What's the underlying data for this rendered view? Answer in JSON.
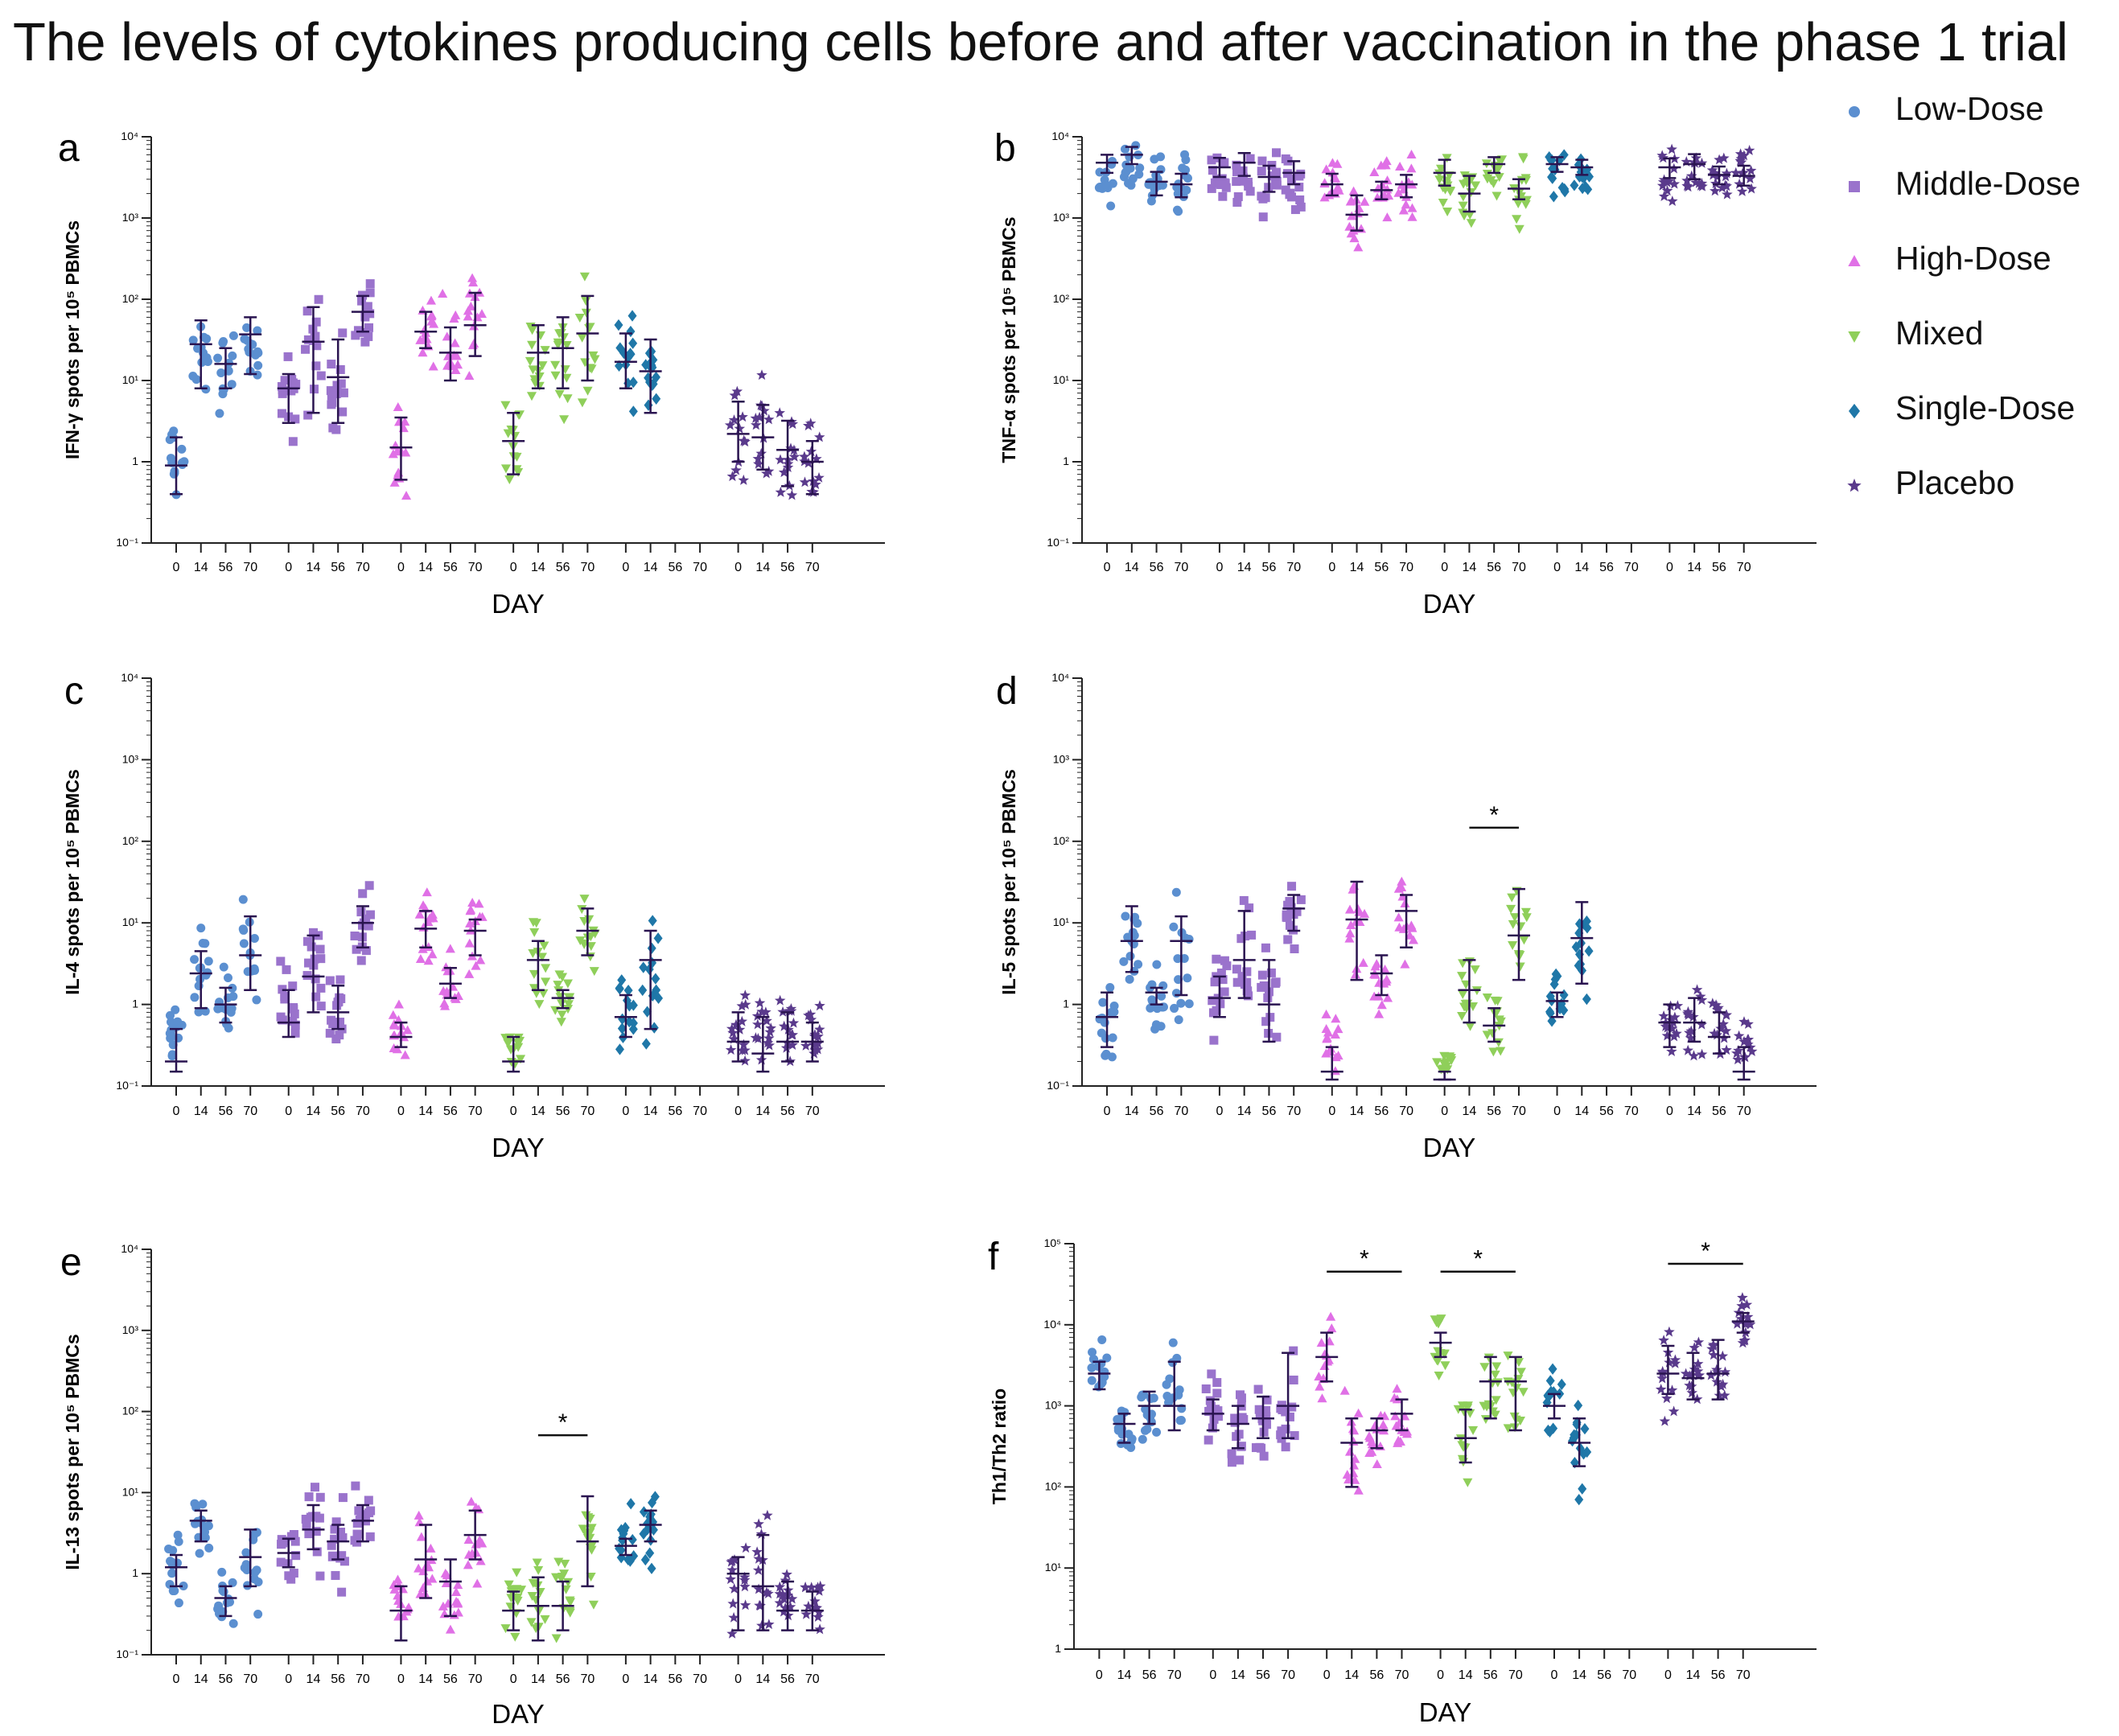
{
  "figure": {
    "title": "The levels of cytokines producing cells before and after vaccination in the phase 1 trial"
  },
  "legend": [
    {
      "name": "Low-Dose",
      "color": "#5b8fd0",
      "marker": "circle"
    },
    {
      "name": "Middle-Dose",
      "color": "#9a73cc",
      "marker": "square"
    },
    {
      "name": "High-Dose",
      "color": "#e070e6",
      "marker": "triangle-up"
    },
    {
      "name": "Mixed",
      "color": "#8fcf5a",
      "marker": "triangle-down"
    },
    {
      "name": "Single-Dose",
      "color": "#1f77a8",
      "marker": "diamond"
    },
    {
      "name": "Placebo",
      "color": "#5a3a8c",
      "marker": "star"
    }
  ],
  "chart_data": [
    {
      "panel": "a",
      "type": "scatter",
      "scale": "log",
      "ylabel": "IFN-γ spots per 10⁵ PBMCs",
      "xlabel": "DAY",
      "ylim_exp": [
        -1,
        4
      ],
      "ytick_labels": [
        "10⁻¹",
        "1",
        "10¹",
        "10²",
        "10³",
        "10⁴"
      ],
      "x_labels": [
        "0",
        "14",
        "56",
        "70"
      ],
      "median": [
        [
          0.9,
          28,
          16,
          37
        ],
        [
          8,
          30,
          11,
          70
        ],
        [
          1.5,
          40,
          22,
          48
        ],
        [
          1.8,
          22,
          25,
          38
        ],
        [
          17,
          13,
          null,
          null
        ],
        [
          2.2,
          2.0,
          1.4,
          1.0
        ]
      ],
      "q1": [
        [
          0.4,
          8,
          8,
          12
        ],
        [
          3,
          4,
          3,
          40
        ],
        [
          0.6,
          25,
          10,
          20
        ],
        [
          0.7,
          8,
          8,
          10
        ],
        [
          8,
          4,
          null,
          null
        ],
        [
          1.0,
          0.8,
          0.5,
          0.4
        ]
      ],
      "q3": [
        [
          2,
          55,
          25,
          60
        ],
        [
          12,
          80,
          32,
          110
        ],
        [
          3.5,
          70,
          45,
          120
        ],
        [
          4,
          48,
          60,
          110
        ],
        [
          38,
          32,
          null,
          null
        ],
        [
          5.5,
          5,
          3.2,
          1.8
        ]
      ],
      "significance": []
    },
    {
      "panel": "b",
      "type": "scatter",
      "scale": "log",
      "ylabel": "TNF-α spots per 10⁵ PBMCs",
      "xlabel": "DAY",
      "ylim_exp": [
        -1,
        4
      ],
      "ytick_labels": [
        "10⁻¹",
        "1",
        "10¹",
        "10²",
        "10³",
        "10⁴"
      ],
      "x_labels": [
        "0",
        "14",
        "56",
        "70"
      ],
      "median": [
        [
          4800,
          6000,
          2800,
          2600
        ],
        [
          4200,
          4800,
          3200,
          3600
        ],
        [
          2600,
          1100,
          2200,
          2600
        ],
        [
          3600,
          2000,
          4600,
          2300
        ],
        [
          4600,
          4200,
          null,
          null
        ],
        [
          4200,
          4600,
          3400,
          3300
        ]
      ],
      "q1": [
        [
          3600,
          4600,
          1900,
          1800
        ],
        [
          3200,
          3300,
          2100,
          2600
        ],
        [
          1900,
          700,
          1700,
          1800
        ],
        [
          2500,
          1200,
          3600,
          1700
        ],
        [
          3700,
          3400,
          null,
          null
        ],
        [
          3100,
          3000,
          2600,
          2500
        ]
      ],
      "q3": [
        [
          6000,
          7500,
          3700,
          3500
        ],
        [
          5500,
          6300,
          4400,
          5000
        ],
        [
          3500,
          1900,
          2800,
          3400
        ],
        [
          5200,
          3300,
          5600,
          3000
        ],
        [
          5600,
          5200,
          null,
          null
        ],
        [
          5400,
          6100,
          4300,
          4400
        ]
      ],
      "significance": []
    },
    {
      "panel": "c",
      "type": "scatter",
      "scale": "log",
      "ylabel": "IL-4 spots per 10⁵ PBMCs",
      "xlabel": "DAY",
      "ylim_exp": [
        -1,
        4
      ],
      "ytick_labels": [
        "10⁻¹",
        "1",
        "10¹",
        "10²",
        "10³",
        "10⁴"
      ],
      "x_labels": [
        "0",
        "14",
        "56",
        "70"
      ],
      "median": [
        [
          0.2,
          2.4,
          1.0,
          4.0
        ],
        [
          0.6,
          2.2,
          0.8,
          10
        ],
        [
          0.4,
          8.5,
          1.8,
          8.0
        ],
        [
          0.2,
          3.5,
          1.2,
          8.0
        ],
        [
          0.7,
          3.5,
          null,
          null
        ],
        [
          0.35,
          0.25,
          0.35,
          0.35
        ]
      ],
      "q1": [
        [
          0.15,
          0.9,
          0.6,
          1.5
        ],
        [
          0.4,
          0.8,
          0.5,
          5
        ],
        [
          0.3,
          5.0,
          1.2,
          4.0
        ],
        [
          0.15,
          1.5,
          0.9,
          4.0
        ],
        [
          0.4,
          0.5,
          null,
          null
        ],
        [
          0.2,
          0.15,
          0.2,
          0.2
        ]
      ],
      "q3": [
        [
          0.5,
          4.5,
          1.6,
          12
        ],
        [
          1.5,
          7.0,
          1.7,
          16
        ],
        [
          0.6,
          14,
          2.8,
          11
        ],
        [
          0.4,
          6.0,
          1.5,
          15
        ],
        [
          1.3,
          8.0,
          null,
          null
        ],
        [
          0.8,
          0.7,
          0.8,
          0.6
        ]
      ],
      "significance": []
    },
    {
      "panel": "d",
      "type": "scatter",
      "scale": "log",
      "ylabel": "IL-5 spots per 10⁵ PBMCs",
      "xlabel": "DAY",
      "ylim_exp": [
        -1,
        4
      ],
      "ytick_labels": [
        "10⁻¹",
        "1",
        "10¹",
        "10²",
        "10³",
        "10⁴"
      ],
      "x_labels": [
        "0",
        "14",
        "56",
        "70"
      ],
      "median": [
        [
          0.7,
          6.0,
          1.4,
          6.0
        ],
        [
          1.2,
          3.5,
          1.0,
          15
        ],
        [
          0.15,
          11,
          2.4,
          14
        ],
        [
          0.12,
          1.5,
          0.55,
          7.0
        ],
        [
          1.1,
          6.5,
          null,
          null
        ],
        [
          0.6,
          0.6,
          0.4,
          0.15
        ]
      ],
      "q1": [
        [
          0.3,
          2.5,
          1.0,
          1.3
        ],
        [
          0.7,
          1.2,
          0.35,
          8
        ],
        [
          0.12,
          2.0,
          1.3,
          5.0
        ],
        [
          0.12,
          0.6,
          0.35,
          2.0
        ],
        [
          0.7,
          1.8,
          null,
          null
        ],
        [
          0.3,
          0.35,
          0.25,
          0.12
        ]
      ],
      "q3": [
        [
          1.4,
          16,
          1.6,
          12
        ],
        [
          2.2,
          14,
          3.5,
          22
        ],
        [
          0.3,
          32,
          4.0,
          22
        ],
        [
          0.15,
          3.5,
          0.9,
          26
        ],
        [
          1.4,
          18,
          null,
          null
        ],
        [
          1.0,
          1.2,
          0.8,
          0.3
        ]
      ],
      "significance": [
        {
          "group": 3,
          "from": 1,
          "to": 3,
          "label": "*"
        }
      ]
    },
    {
      "panel": "e",
      "type": "scatter",
      "scale": "log",
      "ylabel": "IL-13 spots per 10⁵ PBMCs",
      "xlabel": "DAY",
      "ylim_exp": [
        -1,
        4
      ],
      "ytick_labels": [
        "10⁻¹",
        "1",
        "10¹",
        "10²",
        "10³",
        "10⁴"
      ],
      "x_labels": [
        "0",
        "14",
        "56",
        "70"
      ],
      "median": [
        [
          1.2,
          4.5,
          0.5,
          1.6
        ],
        [
          1.8,
          3.5,
          2.5,
          4.5
        ],
        [
          0.35,
          1.5,
          0.8,
          3.0
        ],
        [
          0.35,
          0.4,
          0.4,
          2.5
        ],
        [
          2.2,
          4.0,
          null,
          null
        ],
        [
          1.0,
          0.7,
          0.35,
          0.35
        ]
      ],
      "q1": [
        [
          0.7,
          2.5,
          0.3,
          0.7
        ],
        [
          1.2,
          2.0,
          1.5,
          2.5
        ],
        [
          0.15,
          0.5,
          0.3,
          1.5
        ],
        [
          0.2,
          0.15,
          0.2,
          0.7
        ],
        [
          1.7,
          2.5,
          null,
          null
        ],
        [
          0.2,
          0.2,
          0.2,
          0.2
        ]
      ],
      "q3": [
        [
          1.7,
          6.0,
          0.7,
          3.5
        ],
        [
          2.7,
          7.0,
          4.0,
          7.0
        ],
        [
          0.7,
          4.0,
          1.5,
          6.0
        ],
        [
          0.6,
          0.9,
          0.8,
          9.0
        ],
        [
          2.7,
          6.0,
          null,
          null
        ],
        [
          1.6,
          3.0,
          0.8,
          0.6
        ]
      ],
      "significance": [
        {
          "group": 3,
          "from": 1,
          "to": 3,
          "label": "*"
        }
      ]
    },
    {
      "panel": "f",
      "type": "scatter",
      "scale": "log",
      "ylabel": "Th1/Th2 ratio",
      "xlabel": "DAY",
      "ylim_exp": [
        0,
        5
      ],
      "ytick_labels": [
        "1",
        "10¹",
        "10²",
        "10³",
        "10⁴",
        "10⁵"
      ],
      "x_labels": [
        "0",
        "14",
        "56",
        "70"
      ],
      "median": [
        [
          2500,
          600,
          1000,
          1000
        ],
        [
          800,
          600,
          700,
          1000
        ],
        [
          4000,
          350,
          500,
          800
        ],
        [
          6000,
          400,
          2000,
          2000
        ],
        [
          1000,
          350,
          null,
          null
        ],
        [
          2500,
          2200,
          2500,
          11000
        ]
      ],
      "q1": [
        [
          1600,
          350,
          600,
          500
        ],
        [
          500,
          300,
          400,
          400
        ],
        [
          2000,
          100,
          300,
          500
        ],
        [
          4000,
          200,
          700,
          500
        ],
        [
          700,
          180,
          null,
          null
        ],
        [
          1400,
          1200,
          1200,
          8000
        ]
      ],
      "q3": [
        [
          3500,
          800,
          1500,
          3500
        ],
        [
          1200,
          1000,
          1300,
          4500
        ],
        [
          8000,
          700,
          700,
          1200
        ],
        [
          8000,
          900,
          4000,
          4000
        ],
        [
          1400,
          700,
          null,
          null
        ],
        [
          5500,
          4500,
          6500,
          14000
        ]
      ],
      "significance": [
        {
          "group": 2,
          "from": 0,
          "to": 3,
          "label": "*"
        },
        {
          "group": 3,
          "from": 0,
          "to": 3,
          "label": "*"
        },
        {
          "group": 5,
          "from": 0,
          "to": 3,
          "label": "*"
        }
      ]
    }
  ]
}
